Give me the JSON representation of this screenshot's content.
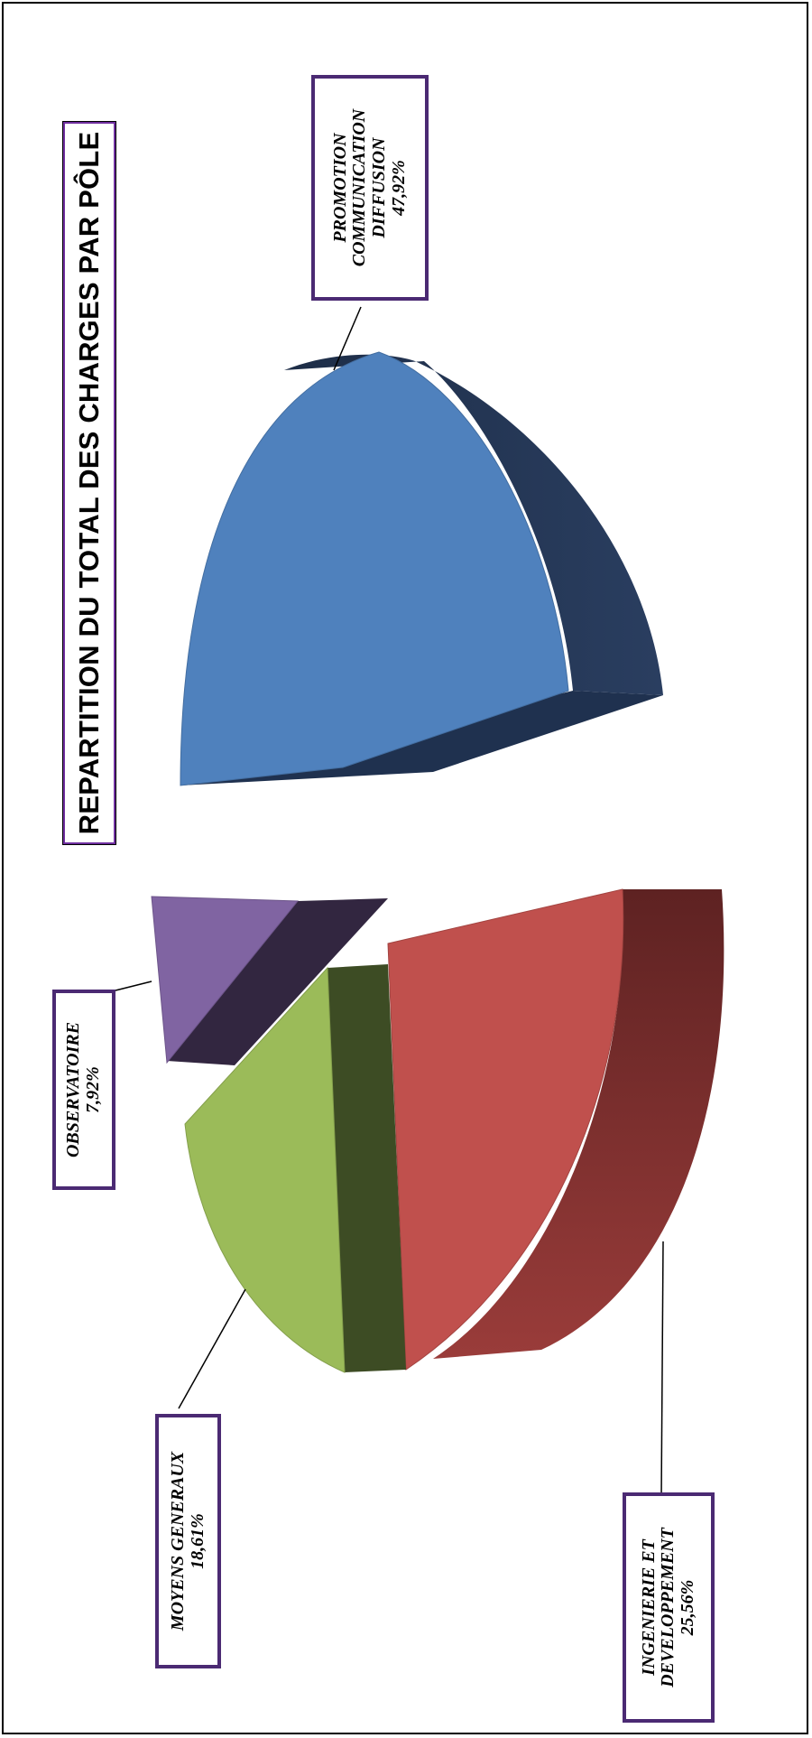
{
  "chart_data": {
    "type": "pie",
    "title": "REPARTITION DU TOTAL DES CHARGES PAR PÔLE",
    "slices": [
      {
        "name": "PROMOTION COMMUNICATION DIFFUSION",
        "label_lines": [
          "PROMOTION",
          "COMMUNICATION",
          "DIFFUSION"
        ],
        "value_label": "47,92%",
        "value": 47.92,
        "color": "#4f81bd"
      },
      {
        "name": "INGENIERIE ET DEVELOPPEMENT",
        "label_lines": [
          "INGENIERIE ET",
          "DEVELOPPEMENT"
        ],
        "value_label": "25,56%",
        "value": 25.56,
        "color": "#c0504d"
      },
      {
        "name": "MOYENS GENERAUX",
        "label_lines": [
          "MOYENS GENERAUX"
        ],
        "value_label": "18,61%",
        "value": 18.61,
        "color": "#9bbb59"
      },
      {
        "name": "OBSERVATOIRE",
        "label_lines": [
          "OBSERVATOIRE"
        ],
        "value_label": "7,92%",
        "value": 7.92,
        "color": "#8064a2"
      }
    ],
    "style": "3d-exploded",
    "orientation": "rotated-90-ccw",
    "legend": "none"
  }
}
